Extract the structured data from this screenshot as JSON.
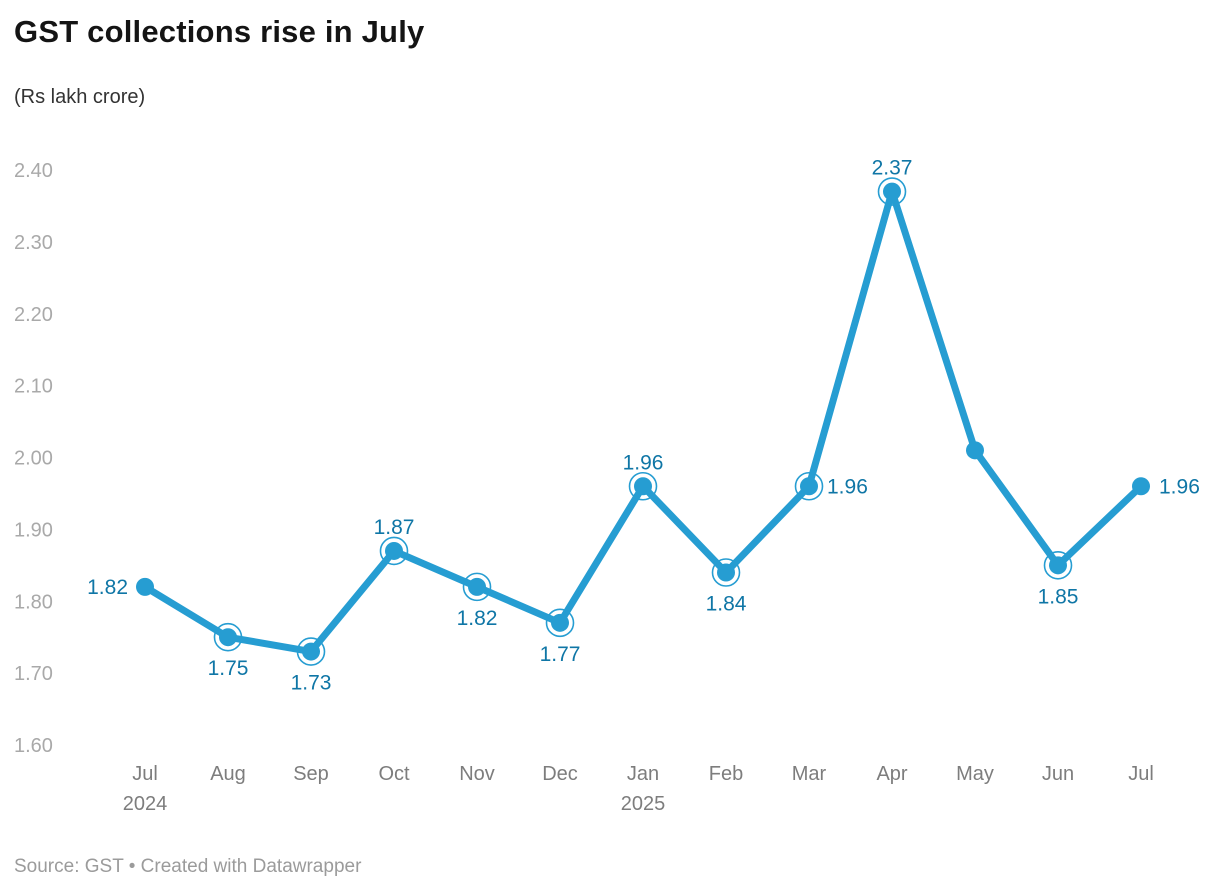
{
  "header": {
    "title": "GST collections rise in July",
    "subtitle": "(Rs lakh crore)"
  },
  "footer": {
    "text": "Source: GST • Created with Datawrapper"
  },
  "colors": {
    "line": "#269dd2",
    "point": "#269dd2",
    "value_label": "#0f76a6",
    "y_axis_label": "#a9a9a9",
    "x_axis_label": "#7d7d7d",
    "title": "#141414",
    "subtitle": "#333333",
    "footer": "#9b9b9b",
    "background": "#ffffff"
  },
  "chart_data": {
    "type": "line",
    "title": "GST collections rise in July",
    "subtitle": "(Rs lakh crore)",
    "xlabel": "",
    "ylabel": "Rs lakh crore",
    "ylim": [
      1.6,
      2.4
    ],
    "yticks": [
      "2.40",
      "2.30",
      "2.20",
      "2.10",
      "2.00",
      "1.90",
      "1.80",
      "1.70",
      "1.60"
    ],
    "grid": false,
    "legend": "none",
    "source": "Source: GST • Created with Datawrapper",
    "categories": [
      "Jul 2024",
      "Aug",
      "Sep",
      "Oct",
      "Nov",
      "Dec",
      "Jan 2025",
      "Feb",
      "Mar",
      "Apr",
      "May",
      "Jun",
      "Jul"
    ],
    "values": [
      1.82,
      1.75,
      1.73,
      1.87,
      1.82,
      1.77,
      1.96,
      1.84,
      1.96,
      2.37,
      2.01,
      1.85,
      1.96
    ],
    "x_ticks": [
      {
        "month": "Jul",
        "year": "2024"
      },
      {
        "month": "Aug"
      },
      {
        "month": "Sep"
      },
      {
        "month": "Oct"
      },
      {
        "month": "Nov"
      },
      {
        "month": "Dec"
      },
      {
        "month": "Jan",
        "year": "2025"
      },
      {
        "month": "Feb"
      },
      {
        "month": "Mar"
      },
      {
        "month": "Apr"
      },
      {
        "month": "May"
      },
      {
        "month": "Jun"
      },
      {
        "month": "Jul"
      }
    ],
    "points": [
      {
        "category": "Jul 2024",
        "value": 1.82,
        "label": "1.82",
        "label_pos": "left",
        "ring": false
      },
      {
        "category": "Aug",
        "value": 1.75,
        "label": "1.75",
        "label_pos": "below",
        "ring": true
      },
      {
        "category": "Sep",
        "value": 1.73,
        "label": "1.73",
        "label_pos": "below",
        "ring": true
      },
      {
        "category": "Oct",
        "value": 1.87,
        "label": "1.87",
        "label_pos": "above",
        "ring": true
      },
      {
        "category": "Nov",
        "value": 1.82,
        "label": "1.82",
        "label_pos": "below",
        "ring": true
      },
      {
        "category": "Dec",
        "value": 1.77,
        "label": "1.77",
        "label_pos": "below",
        "ring": true
      },
      {
        "category": "Jan 2025",
        "value": 1.96,
        "label": "1.96",
        "label_pos": "above",
        "ring": true
      },
      {
        "category": "Feb",
        "value": 1.84,
        "label": "1.84",
        "label_pos": "below",
        "ring": true
      },
      {
        "category": "Mar",
        "value": 1.96,
        "label": "1.96",
        "label_pos": "right",
        "ring": true
      },
      {
        "category": "Apr",
        "value": 2.37,
        "label": "2.37",
        "label_pos": "above",
        "ring": true
      },
      {
        "category": "May",
        "value": 2.01,
        "label": "",
        "label_pos": "none",
        "ring": false
      },
      {
        "category": "Jun",
        "value": 1.85,
        "label": "1.85",
        "label_pos": "below",
        "ring": true
      },
      {
        "category": "Jul",
        "value": 1.96,
        "label": "1.96",
        "label_pos": "right",
        "ring": false
      }
    ]
  }
}
